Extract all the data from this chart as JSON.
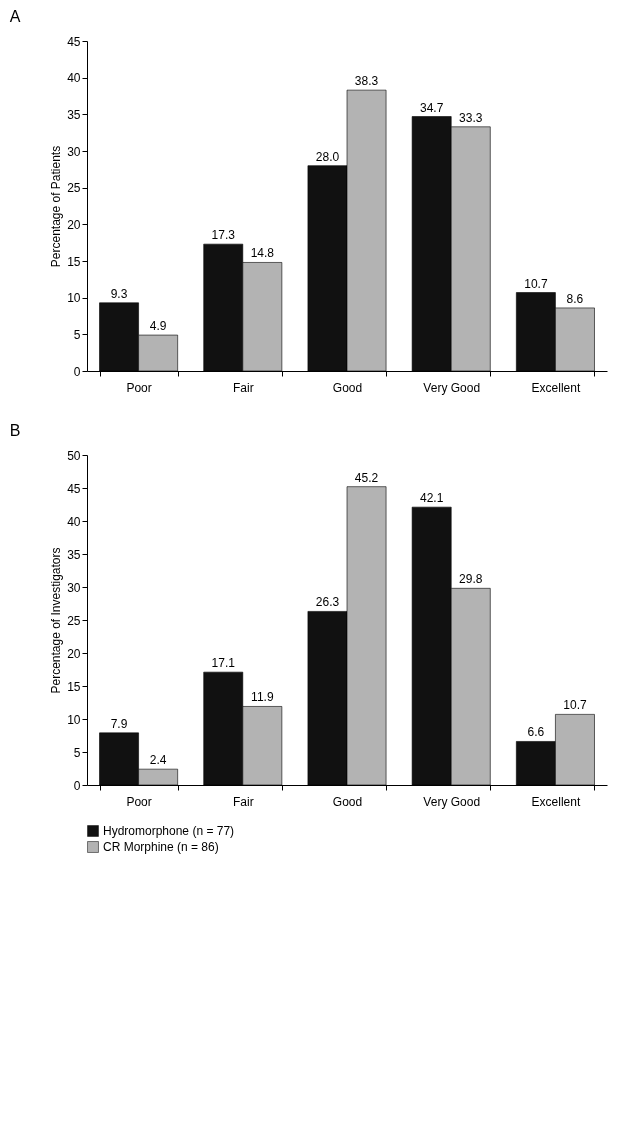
{
  "chart_data": [
    {
      "type": "bar",
      "title": "A",
      "ylabel": "Percentage of Patients",
      "categories": [
        "Poor",
        "Fair",
        "Good",
        "Very Good",
        "Excellent"
      ],
      "series": [
        {
          "color": "#111111",
          "values": [
            9.3,
            17.3,
            28.0,
            34.7,
            10.7
          ],
          "value_labels": [
            "9.3",
            "17.3",
            "28.0",
            "34.7",
            "10.7"
          ]
        },
        {
          "color": "#b3b3b3",
          "values": [
            4.9,
            14.8,
            38.3,
            33.3,
            8.6
          ],
          "value_labels": [
            "4.9",
            "14.8",
            "38.3",
            "33.3",
            "8.6"
          ]
        }
      ],
      "ylim": [
        0,
        45
      ],
      "yticks": [
        0,
        5,
        10,
        15,
        20,
        25,
        30,
        35,
        40,
        45
      ],
      "grid": false
    },
    {
      "type": "bar",
      "title": "B",
      "ylabel": "Percentage of Investigators",
      "categories": [
        "Poor",
        "Fair",
        "Good",
        "Very Good",
        "Excellent"
      ],
      "series": [
        {
          "name": "Hydromorphone (n = 77)",
          "color": "#111111",
          "values": [
            7.9,
            17.1,
            26.3,
            42.1,
            6.6
          ],
          "value_labels": [
            "7.9",
            "17.1",
            "26.3",
            "42.1",
            "6.6"
          ]
        },
        {
          "name": "CR Morphine (n = 86)",
          "color": "#b3b3b3",
          "values": [
            2.4,
            11.9,
            45.2,
            29.8,
            10.7
          ],
          "value_labels": [
            "2.4",
            "11.9",
            "45.2",
            "29.8",
            "10.7"
          ]
        }
      ],
      "ylim": [
        0,
        50
      ],
      "yticks": [
        0,
        5,
        10,
        15,
        20,
        25,
        30,
        35,
        40,
        45,
        50
      ],
      "grid": false,
      "legend": "bottom"
    }
  ]
}
